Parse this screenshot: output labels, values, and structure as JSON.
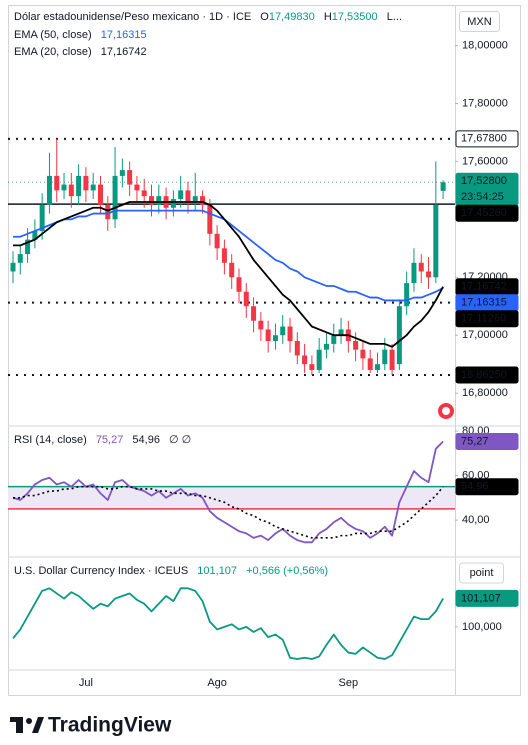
{
  "chart_data": [
    {
      "type": "candlestick",
      "title": "Dólar estadounidense/Peso mexicano · 1D · ICE",
      "quote": [
        {
          "key": "O",
          "value": "17,49830"
        },
        {
          "key": "H",
          "value": "17,53500"
        }
      ],
      "quote_more": "L...",
      "currency": "MXN",
      "categories": [
        null,
        null,
        null,
        null,
        null,
        null,
        null,
        null,
        null,
        null,
        "Jul",
        null,
        null,
        null,
        null,
        null,
        null,
        null,
        null,
        null,
        null,
        null,
        null,
        null,
        null,
        null,
        null,
        null,
        "Ago",
        null,
        null,
        null,
        null,
        null,
        null,
        null,
        null,
        null,
        null,
        null,
        null,
        null,
        null,
        null,
        null,
        null,
        "Sep",
        null,
        null,
        null,
        null,
        null,
        null,
        null,
        null,
        null,
        null,
        null,
        null,
        null
      ],
      "open": [
        17.22,
        17.25,
        17.28,
        17.33,
        17.36,
        17.45,
        17.55,
        17.5,
        17.52,
        17.48,
        17.55,
        17.5,
        17.52,
        17.45,
        17.4,
        17.55,
        17.57,
        17.52,
        17.5,
        17.48,
        17.45,
        17.48,
        17.44,
        17.47,
        17.5,
        17.46,
        17.48,
        17.45,
        17.35,
        17.3,
        17.25,
        17.2,
        17.15,
        17.1,
        17.05,
        17.02,
        16.98,
        17.0,
        17.03,
        16.98,
        16.93,
        16.9,
        16.88,
        16.95,
        16.97,
        17.0,
        17.02,
        16.98,
        16.95,
        16.92,
        16.88,
        16.9,
        16.95,
        16.9,
        17.1,
        17.18,
        17.25,
        17.22,
        17.2,
        17.4983
      ],
      "high": [
        17.29,
        17.31,
        17.37,
        17.4,
        17.49,
        17.63,
        17.678,
        17.56,
        17.56,
        17.59,
        17.58,
        17.56,
        17.55,
        17.48,
        17.65,
        17.61,
        17.6,
        17.55,
        17.54,
        17.52,
        17.52,
        17.51,
        17.5,
        17.55,
        17.53,
        17.56,
        17.5,
        17.47,
        17.38,
        17.33,
        17.28,
        17.23,
        17.18,
        17.13,
        17.08,
        17.05,
        17.04,
        17.07,
        17.06,
        17.01,
        16.97,
        16.93,
        16.99,
        17.01,
        17.04,
        17.06,
        17.05,
        17.01,
        16.98,
        16.95,
        16.94,
        16.99,
        16.97,
        17.12,
        17.22,
        17.3,
        17.28,
        17.27,
        17.6,
        17.535
      ],
      "low": [
        17.18,
        17.21,
        17.25,
        17.3,
        17.33,
        17.42,
        17.46,
        17.47,
        17.44,
        17.45,
        17.46,
        17.47,
        17.42,
        17.36,
        17.37,
        17.51,
        17.48,
        17.46,
        17.44,
        17.41,
        17.42,
        17.4,
        17.41,
        17.44,
        17.42,
        17.43,
        17.42,
        17.31,
        17.26,
        17.21,
        17.16,
        17.11,
        17.06,
        17.01,
        16.98,
        16.94,
        16.95,
        16.97,
        16.94,
        16.9,
        16.87,
        16.8625,
        16.87,
        16.92,
        16.94,
        16.97,
        16.94,
        16.91,
        16.88,
        16.87,
        16.87,
        16.88,
        16.8625,
        16.88,
        17.07,
        17.15,
        17.18,
        17.16,
        17.18,
        17.47
      ],
      "close": [
        17.25,
        17.28,
        17.33,
        17.36,
        17.45,
        17.55,
        17.5,
        17.52,
        17.48,
        17.55,
        17.5,
        17.52,
        17.45,
        17.4,
        17.55,
        17.57,
        17.52,
        17.5,
        17.48,
        17.45,
        17.48,
        17.44,
        17.47,
        17.5,
        17.46,
        17.48,
        17.45,
        17.35,
        17.3,
        17.25,
        17.2,
        17.15,
        17.1,
        17.05,
        17.02,
        16.98,
        17.0,
        17.03,
        16.98,
        16.93,
        16.9,
        16.88,
        16.95,
        16.97,
        17.0,
        17.02,
        16.98,
        16.95,
        16.92,
        16.88,
        16.9,
        16.95,
        16.88,
        17.1,
        17.18,
        17.25,
        17.22,
        17.2,
        17.45,
        17.528
      ],
      "up_color": "#089981",
      "down_color": "#f23645",
      "last_label": "17,52800",
      "countdown": "23:54:25",
      "series": [
        {
          "name": "EMA (50, close)",
          "value_label": "17,16315",
          "color": "#2962ff",
          "values": [
            17.34,
            17.34,
            17.35,
            17.36,
            17.37,
            17.38,
            17.39,
            17.4,
            17.4,
            17.41,
            17.41,
            17.42,
            17.42,
            17.42,
            17.43,
            17.43,
            17.43,
            17.43,
            17.43,
            17.43,
            17.43,
            17.43,
            17.43,
            17.43,
            17.43,
            17.43,
            17.43,
            17.42,
            17.41,
            17.4,
            17.38,
            17.36,
            17.34,
            17.32,
            17.3,
            17.28,
            17.26,
            17.25,
            17.23,
            17.22,
            17.2,
            17.19,
            17.18,
            17.17,
            17.17,
            17.16,
            17.15,
            17.15,
            17.14,
            17.13,
            17.13,
            17.12,
            17.12,
            17.12,
            17.12,
            17.13,
            17.13,
            17.14,
            17.15,
            17.16315
          ]
        },
        {
          "name": "EMA (20, close)",
          "value_label": "17,16742",
          "color": "#000000",
          "values": [
            17.31,
            17.31,
            17.32,
            17.33,
            17.35,
            17.37,
            17.39,
            17.4,
            17.41,
            17.42,
            17.43,
            17.44,
            17.44,
            17.43,
            17.44,
            17.45,
            17.46,
            17.46,
            17.46,
            17.46,
            17.46,
            17.46,
            17.46,
            17.46,
            17.46,
            17.46,
            17.46,
            17.45,
            17.43,
            17.4,
            17.37,
            17.34,
            17.3,
            17.26,
            17.23,
            17.2,
            17.17,
            17.14,
            17.12,
            17.09,
            17.06,
            17.03,
            17.02,
            17.01,
            17.0,
            17.0,
            17.0,
            16.99,
            16.98,
            16.97,
            16.97,
            16.97,
            16.96,
            16.98,
            17.0,
            17.03,
            17.05,
            17.08,
            17.12,
            17.16742
          ]
        }
      ],
      "price_lines": [
        {
          "value": 17.678,
          "label": "17,67800",
          "style": "dotted",
          "tag_color": "#ffffff"
        },
        {
          "value": 17.4526,
          "label": "17,45260",
          "style": "solid",
          "tag_color": "#000000"
        },
        {
          "value": 17.1126,
          "label": "17,11260",
          "style": "dotted",
          "tag_color": "#000000"
        },
        {
          "value": 16.8625,
          "label": "16,86250",
          "style": "dotted",
          "tag_color": "#000000"
        }
      ],
      "ylim": [
        16.69,
        18.14
      ],
      "yticks": [
        {
          "value": 18,
          "label": "18,00000"
        },
        {
          "value": 17.8,
          "label": "17,80000"
        },
        {
          "value": 17.6,
          "label": "17,60000"
        },
        {
          "value": 17.2,
          "label": "17,20000"
        },
        {
          "value": 17,
          "label": "17,00000"
        },
        {
          "value": 16.8,
          "label": "16,80000"
        }
      ]
    },
    {
      "type": "line",
      "title": "RSI (14, close)",
      "extra": "∅  ∅",
      "series": [
        {
          "value_label": "75,27",
          "color": "#7e57c2",
          "style": "solid",
          "values": [
            50,
            49,
            52,
            56,
            58,
            59,
            56,
            57,
            55,
            58,
            55,
            56,
            52,
            49,
            57,
            58,
            55,
            54,
            53,
            51,
            53,
            50,
            52,
            54,
            51,
            52,
            50,
            44,
            41,
            39,
            37,
            35,
            34,
            32,
            33,
            31,
            34,
            36,
            33,
            31,
            30,
            30,
            34,
            36,
            39,
            41,
            38,
            36,
            35,
            32,
            34,
            37,
            33,
            48,
            55,
            62,
            59,
            57,
            72,
            75.27
          ]
        },
        {
          "value_label": "54,96",
          "color": "#000000",
          "style": "dotted",
          "values": [
            50,
            50,
            51,
            51,
            52,
            53,
            53,
            54,
            54,
            55,
            55,
            55,
            55,
            54,
            54,
            55,
            55,
            54,
            54,
            54,
            53,
            53,
            52,
            52,
            52,
            51,
            51,
            50,
            49,
            48,
            46,
            45,
            43,
            42,
            40,
            39,
            37,
            36,
            35,
            34,
            33,
            32,
            32,
            32,
            32,
            33,
            33,
            34,
            34,
            34,
            35,
            35,
            35,
            37,
            39,
            42,
            45,
            48,
            51,
            54.96
          ]
        }
      ],
      "levels": [
        {
          "value": 55,
          "color": "#089981"
        },
        {
          "value": 45,
          "color": "#f23645"
        }
      ],
      "band_color": "#ede7f6",
      "ylim": [
        24.3,
        81.8
      ],
      "yticks": [
        {
          "value": 80,
          "label": "80,00"
        },
        {
          "value": 60,
          "label": "60,00"
        },
        {
          "value": 40,
          "label": "40,00"
        }
      ]
    },
    {
      "type": "line",
      "title": "U.S. Dollar Currency Index · ICEUS",
      "unit": "point",
      "change": "+0,566 (+0,56%)",
      "series": [
        {
          "value_label": "101,107",
          "color": "#089981",
          "style": "solid",
          "values": [
            99.55,
            99.9,
            100.4,
            100.9,
            101.4,
            101.5,
            101.3,
            101.1,
            101.35,
            101.2,
            100.95,
            100.7,
            100.9,
            100.8,
            101.1,
            101.2,
            101.3,
            101.05,
            100.9,
            100.6,
            100.9,
            101.2,
            101.0,
            101.5,
            101.5,
            101.4,
            101.0,
            100.2,
            99.9,
            100.0,
            100.1,
            99.9,
            100.0,
            99.8,
            99.95,
            99.6,
            99.7,
            99.5,
            98.8,
            98.75,
            98.8,
            98.75,
            98.85,
            99.3,
            99.7,
            99.3,
            99.0,
            98.95,
            99.2,
            99.0,
            98.8,
            98.75,
            98.9,
            99.4,
            99.9,
            100.4,
            100.3,
            100.3,
            100.6,
            101.107
          ]
        }
      ],
      "ylim": [
        98.4,
        102.6
      ],
      "yticks": [
        {
          "value": 100,
          "label": "100,000"
        }
      ]
    }
  ],
  "footer": {
    "brand": "TradingView"
  }
}
